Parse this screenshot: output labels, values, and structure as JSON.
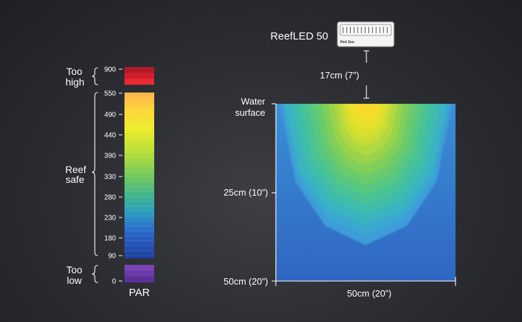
{
  "device": {
    "name": "ReefLED 50",
    "brand": "Red Sea",
    "distance_label": "17cm (7”)"
  },
  "scale": {
    "unit_label": "PAR",
    "ticks": [
      "900",
      "550",
      "490",
      "440",
      "390",
      "330",
      "280",
      "230",
      "180",
      "90",
      "0"
    ],
    "zones": {
      "too_high": [
        "Too",
        "high"
      ],
      "reef_safe": [
        "Reef",
        "safe"
      ],
      "too_low": [
        "Too",
        "low"
      ]
    }
  },
  "tank": {
    "surface_label": [
      "Water",
      "surface"
    ],
    "depth_mid_label": "25cm (10”)",
    "depth_bottom_label": "50cm (20”)",
    "width_label": "50cm (20”)"
  },
  "colors": {
    "too_high": [
      "#b31a28",
      "#cf1f2c",
      "#ea2a34"
    ],
    "too_low": [
      "#7a44b4",
      "#6a3aa6",
      "#5a3098"
    ],
    "reef_safe_top": "#fdb24c",
    "reef_safe_bottom": "#1b3f9a"
  }
}
